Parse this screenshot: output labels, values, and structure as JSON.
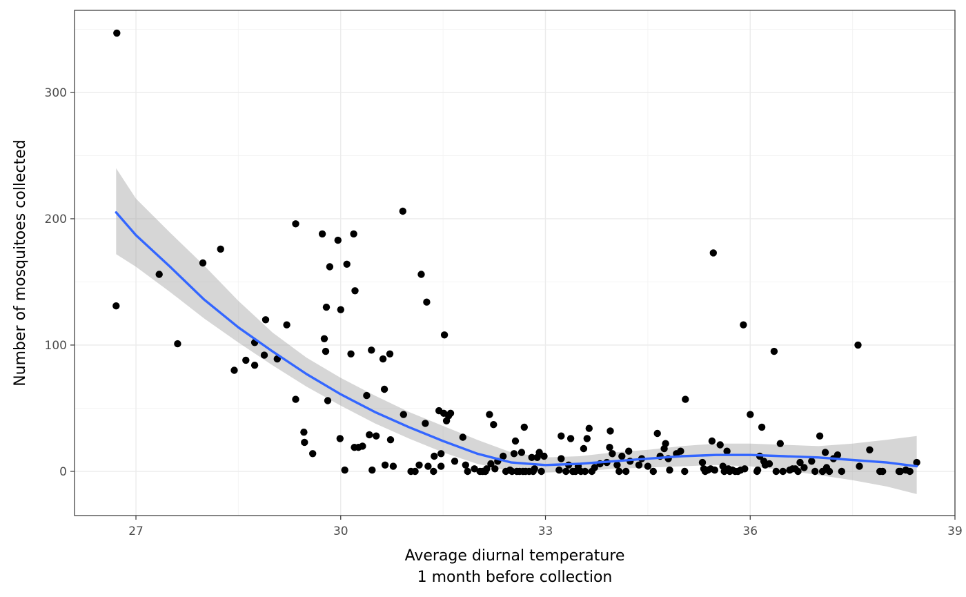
{
  "chart_data": {
    "type": "scatter",
    "title": "",
    "xlabel_line1": "Average diurnal temperature",
    "xlabel_line2": "1 month before collection",
    "ylabel": "Number of mosquitoes collected",
    "xlim": [
      26.1,
      39.0
    ],
    "ylim": [
      -35,
      365
    ],
    "x_ticks": [
      27,
      30,
      33,
      36,
      39
    ],
    "y_ticks": [
      0,
      100,
      200,
      300
    ],
    "x_tick_labels": [
      "27",
      "30",
      "33",
      "36",
      "39"
    ],
    "y_tick_labels": [
      "0",
      "100",
      "200",
      "300"
    ],
    "grid": true,
    "colors": {
      "points": "#000000",
      "smooth_line": "#3366FF",
      "ribbon": "#999999"
    },
    "points": [
      [
        26.72,
        347
      ],
      [
        26.71,
        131
      ],
      [
        27.34,
        156
      ],
      [
        27.61,
        101
      ],
      [
        27.98,
        165
      ],
      [
        28.24,
        176
      ],
      [
        28.44,
        80
      ],
      [
        28.61,
        88
      ],
      [
        28.74,
        102
      ],
      [
        28.74,
        84
      ],
      [
        28.88,
        92
      ],
      [
        28.9,
        120
      ],
      [
        29.07,
        89
      ],
      [
        29.21,
        116
      ],
      [
        29.34,
        57
      ],
      [
        29.34,
        196
      ],
      [
        29.46,
        31
      ],
      [
        29.47,
        23
      ],
      [
        29.59,
        14
      ],
      [
        29.73,
        188
      ],
      [
        29.76,
        105
      ],
      [
        29.78,
        95
      ],
      [
        29.79,
        130
      ],
      [
        29.81,
        56
      ],
      [
        29.84,
        162
      ],
      [
        29.96,
        183
      ],
      [
        29.99,
        26
      ],
      [
        30.0,
        128
      ],
      [
        30.06,
        1
      ],
      [
        30.09,
        164
      ],
      [
        30.15,
        93
      ],
      [
        30.19,
        188
      ],
      [
        30.2,
        19
      ],
      [
        30.21,
        143
      ],
      [
        30.26,
        19
      ],
      [
        30.32,
        20
      ],
      [
        30.38,
        60
      ],
      [
        30.42,
        29
      ],
      [
        30.45,
        96
      ],
      [
        30.46,
        1
      ],
      [
        30.52,
        28
      ],
      [
        30.62,
        89
      ],
      [
        30.64,
        65
      ],
      [
        30.65,
        5
      ],
      [
        30.72,
        93
      ],
      [
        30.73,
        25
      ],
      [
        30.77,
        4
      ],
      [
        30.91,
        206
      ],
      [
        30.92,
        45
      ],
      [
        31.03,
        0
      ],
      [
        31.09,
        0
      ],
      [
        31.15,
        5
      ],
      [
        31.18,
        156
      ],
      [
        31.24,
        38
      ],
      [
        31.26,
        134
      ],
      [
        31.28,
        4
      ],
      [
        31.36,
        0
      ],
      [
        31.37,
        12
      ],
      [
        31.44,
        48
      ],
      [
        31.47,
        14
      ],
      [
        31.47,
        4
      ],
      [
        31.51,
        46
      ],
      [
        31.52,
        108
      ],
      [
        31.55,
        40
      ],
      [
        31.58,
        44
      ],
      [
        31.61,
        46
      ],
      [
        31.67,
        8
      ],
      [
        31.79,
        27
      ],
      [
        31.83,
        5
      ],
      [
        31.86,
        0
      ],
      [
        31.96,
        2
      ],
      [
        32.04,
        0
      ],
      [
        32.08,
        0
      ],
      [
        32.12,
        0
      ],
      [
        32.14,
        2
      ],
      [
        32.18,
        45
      ],
      [
        32.2,
        6
      ],
      [
        32.24,
        37
      ],
      [
        32.26,
        2
      ],
      [
        32.3,
        8
      ],
      [
        32.38,
        12
      ],
      [
        32.42,
        0
      ],
      [
        32.48,
        1
      ],
      [
        32.51,
        0
      ],
      [
        32.54,
        14
      ],
      [
        32.56,
        24
      ],
      [
        32.58,
        0
      ],
      [
        32.62,
        0
      ],
      [
        32.65,
        15
      ],
      [
        32.67,
        0
      ],
      [
        32.69,
        35
      ],
      [
        32.71,
        0
      ],
      [
        32.76,
        0
      ],
      [
        32.8,
        11
      ],
      [
        32.82,
        0
      ],
      [
        32.84,
        2
      ],
      [
        32.88,
        11
      ],
      [
        32.91,
        15
      ],
      [
        32.94,
        0
      ],
      [
        32.98,
        12
      ],
      [
        33.2,
        1
      ],
      [
        33.23,
        10
      ],
      [
        33.23,
        28
      ],
      [
        33.3,
        0
      ],
      [
        33.34,
        5
      ],
      [
        33.37,
        26
      ],
      [
        33.4,
        0
      ],
      [
        33.44,
        0
      ],
      [
        33.48,
        4
      ],
      [
        33.52,
        0
      ],
      [
        33.56,
        18
      ],
      [
        33.58,
        0
      ],
      [
        33.61,
        26
      ],
      [
        33.64,
        34
      ],
      [
        33.68,
        0
      ],
      [
        33.72,
        3
      ],
      [
        33.8,
        6
      ],
      [
        33.9,
        7
      ],
      [
        33.94,
        19
      ],
      [
        33.95,
        32
      ],
      [
        33.98,
        14
      ],
      [
        34.05,
        5
      ],
      [
        34.08,
        0
      ],
      [
        34.12,
        12
      ],
      [
        34.18,
        0
      ],
      [
        34.22,
        16
      ],
      [
        34.24,
        8
      ],
      [
        34.37,
        5
      ],
      [
        34.41,
        10
      ],
      [
        34.5,
        4
      ],
      [
        34.58,
        0
      ],
      [
        34.64,
        30
      ],
      [
        34.68,
        12
      ],
      [
        34.74,
        18
      ],
      [
        34.76,
        22
      ],
      [
        34.8,
        10
      ],
      [
        34.82,
        1
      ],
      [
        34.92,
        14
      ],
      [
        34.98,
        16
      ],
      [
        35.04,
        0
      ],
      [
        35.05,
        57
      ],
      [
        35.3,
        7
      ],
      [
        35.32,
        2
      ],
      [
        35.34,
        0
      ],
      [
        35.38,
        1
      ],
      [
        35.42,
        2
      ],
      [
        35.44,
        24
      ],
      [
        35.46,
        173
      ],
      [
        35.48,
        1
      ],
      [
        35.56,
        21
      ],
      [
        35.6,
        4
      ],
      [
        35.62,
        0
      ],
      [
        35.66,
        16
      ],
      [
        35.68,
        2
      ],
      [
        35.7,
        0
      ],
      [
        35.74,
        1
      ],
      [
        35.78,
        0
      ],
      [
        35.82,
        0
      ],
      [
        35.86,
        1
      ],
      [
        35.9,
        116
      ],
      [
        35.92,
        2
      ],
      [
        36.0,
        45
      ],
      [
        36.1,
        0
      ],
      [
        36.11,
        1
      ],
      [
        36.14,
        12
      ],
      [
        36.17,
        35
      ],
      [
        36.2,
        8
      ],
      [
        36.22,
        5
      ],
      [
        36.28,
        6
      ],
      [
        36.35,
        95
      ],
      [
        36.38,
        0
      ],
      [
        36.44,
        22
      ],
      [
        36.48,
        0
      ],
      [
        36.58,
        1
      ],
      [
        36.62,
        2
      ],
      [
        36.66,
        2
      ],
      [
        36.7,
        0
      ],
      [
        36.73,
        7
      ],
      [
        36.79,
        3
      ],
      [
        36.9,
        8
      ],
      [
        36.95,
        0
      ],
      [
        37.02,
        28
      ],
      [
        37.06,
        0
      ],
      [
        37.1,
        15
      ],
      [
        37.12,
        3
      ],
      [
        37.16,
        0
      ],
      [
        37.22,
        10
      ],
      [
        37.28,
        13
      ],
      [
        37.34,
        0
      ],
      [
        37.58,
        100
      ],
      [
        37.6,
        4
      ],
      [
        37.75,
        17
      ],
      [
        37.9,
        0
      ],
      [
        37.94,
        0
      ],
      [
        38.18,
        0
      ],
      [
        38.2,
        0
      ],
      [
        38.28,
        1
      ],
      [
        38.34,
        0
      ],
      [
        38.44,
        7
      ]
    ],
    "smooth_curve": {
      "method": "loess",
      "x": [
        26.71,
        27.0,
        27.5,
        28.0,
        28.5,
        29.0,
        29.5,
        30.0,
        30.5,
        31.0,
        31.5,
        32.0,
        32.5,
        33.0,
        33.5,
        34.0,
        34.5,
        35.0,
        35.5,
        36.0,
        36.5,
        37.0,
        37.5,
        38.0,
        38.44
      ],
      "y": [
        205,
        187,
        162,
        136,
        114,
        95,
        77,
        61,
        47,
        35,
        24,
        14,
        7,
        5,
        6,
        8,
        10,
        12,
        13,
        13,
        12,
        11,
        9,
        7,
        4
      ],
      "lower": [
        172,
        162,
        142,
        121,
        102,
        84,
        67,
        52,
        38,
        26,
        15,
        6,
        0,
        -1,
        0,
        2,
        3,
        4,
        5,
        4,
        1,
        -3,
        -7,
        -12,
        -18
      ],
      "upper": [
        240,
        216,
        189,
        163,
        135,
        110,
        90,
        74,
        60,
        47,
        36,
        25,
        15,
        11,
        12,
        15,
        17,
        20,
        22,
        22,
        21,
        20,
        22,
        25,
        28
      ]
    }
  }
}
